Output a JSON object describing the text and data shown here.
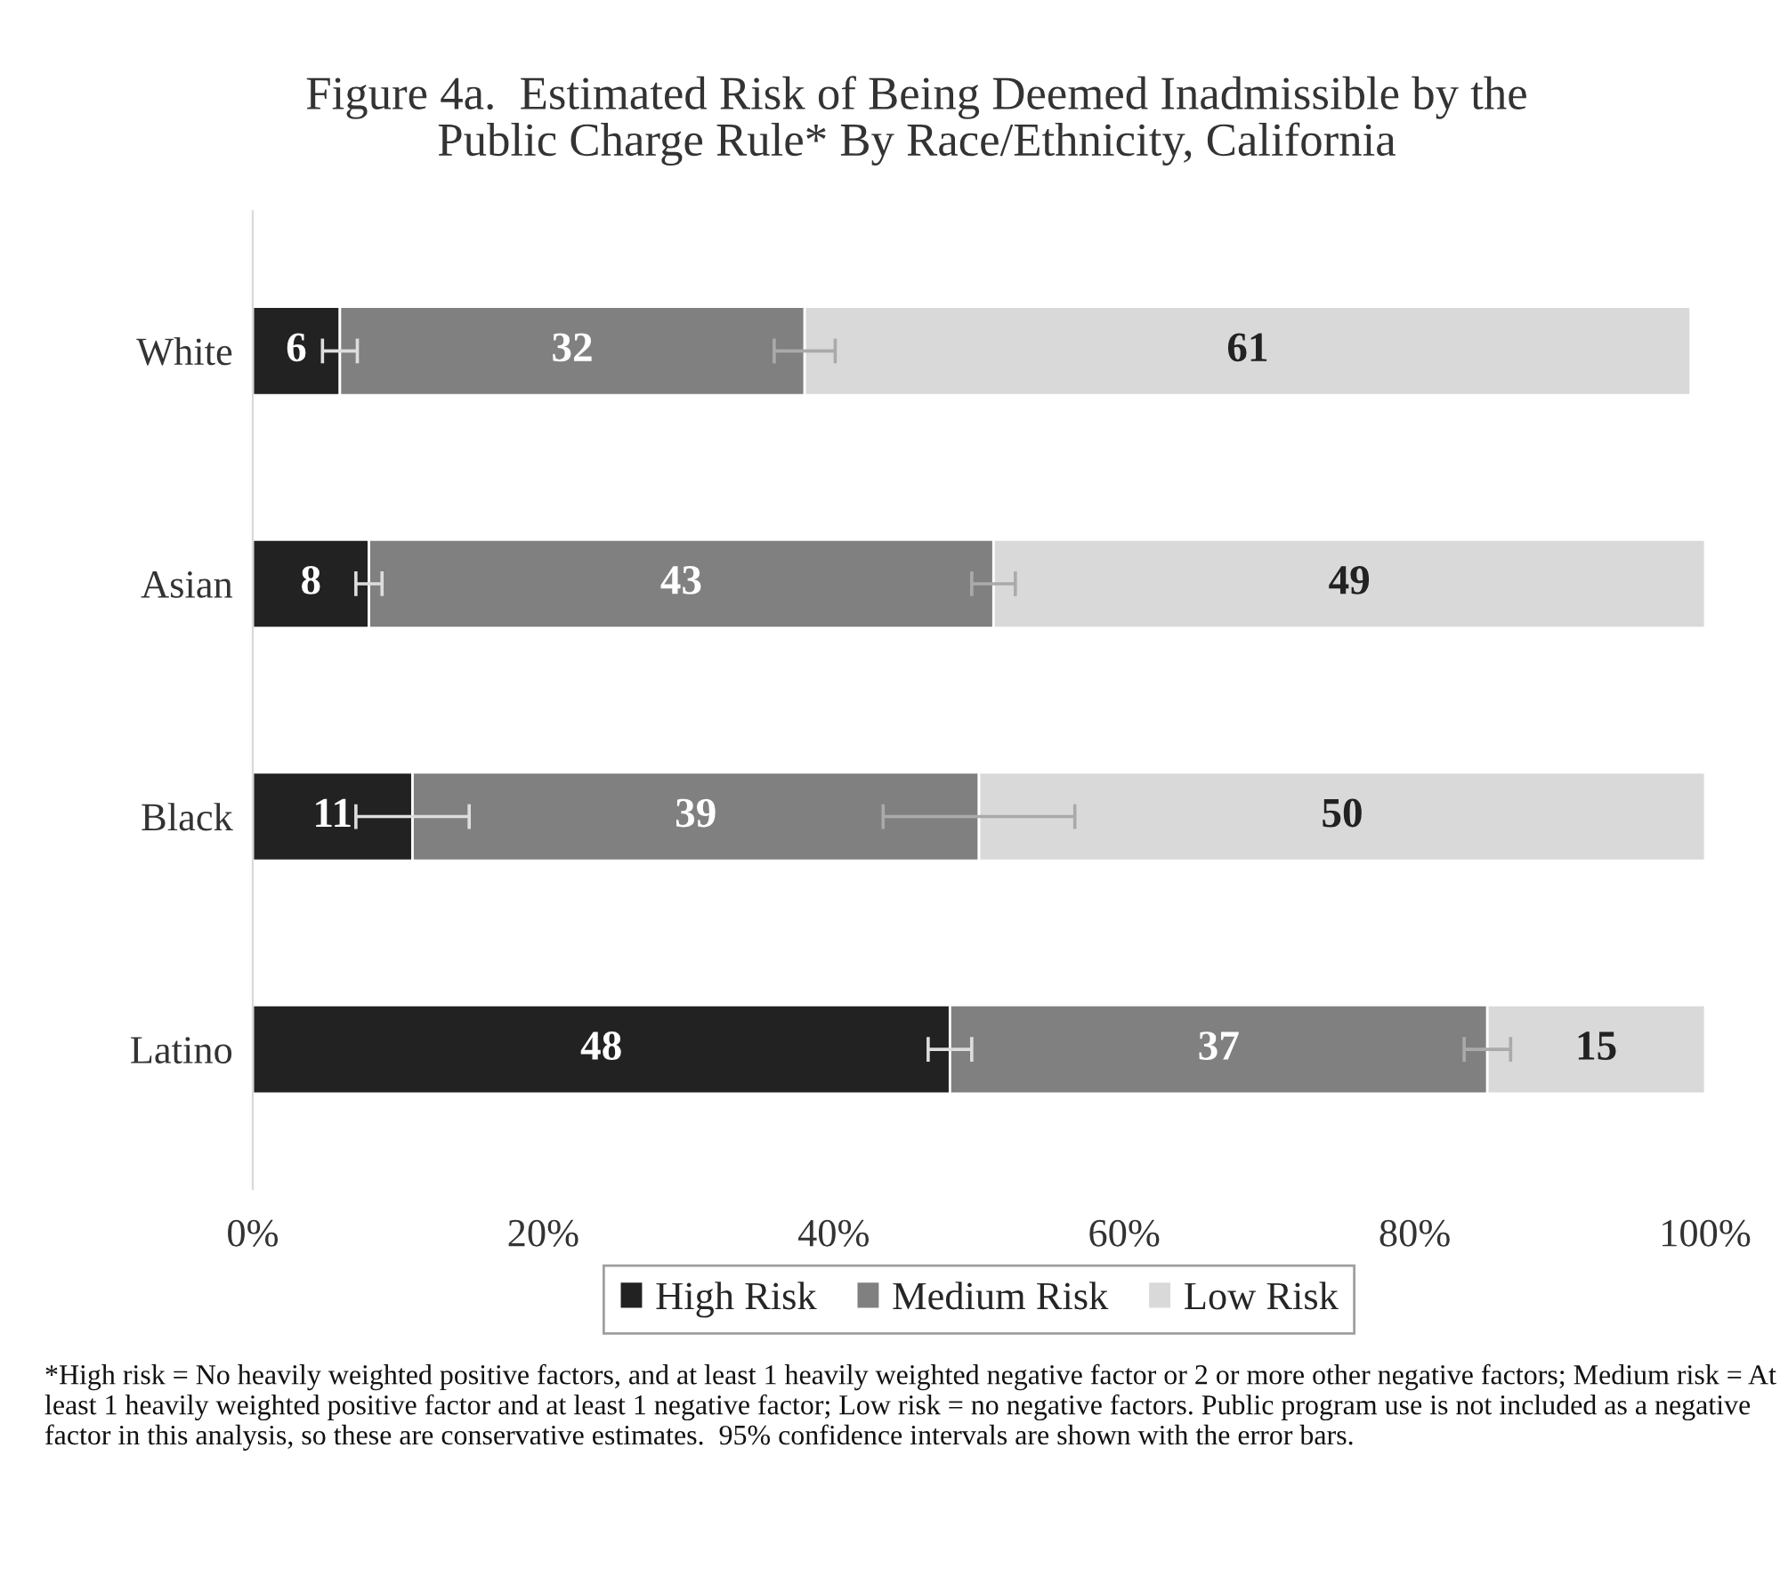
{
  "chart_data": {
    "type": "bar",
    "orientation": "horizontal",
    "stacked": true,
    "title": "Figure 4a.  Estimated Risk of Being Deemed Inadmissible by the\nPublic Charge Rule* By Race/Ethnicity, California",
    "categories": [
      "White",
      "Asian",
      "Black",
      "Latino"
    ],
    "series": [
      {
        "name": "High Risk",
        "color": "#222222",
        "values": [
          6,
          8,
          11,
          48
        ],
        "errors": [
          1.2,
          0.9,
          3.9,
          1.5
        ]
      },
      {
        "name": "Medium Risk",
        "color": "#808080",
        "values": [
          32,
          43,
          39,
          37
        ],
        "errors": [
          2.1,
          1.5,
          6.6,
          1.6
        ]
      },
      {
        "name": "Low Risk",
        "color": "#d9d9d9",
        "values": [
          61,
          49,
          50,
          15
        ]
      }
    ],
    "data_labels": true,
    "xlim": [
      0,
      100
    ],
    "xticks": [
      {
        "value": 0,
        "label": "0%"
      },
      {
        "value": 20,
        "label": "20%"
      },
      {
        "value": 40,
        "label": "40%"
      },
      {
        "value": 60,
        "label": "60%"
      },
      {
        "value": 80,
        "label": "80%"
      },
      {
        "value": 100,
        "label": "100%"
      }
    ],
    "grid": false,
    "legend": "bottom",
    "annotations": [
      "*High risk = No heavily weighted positive factors, and at least 1 heavily weighted negative factor or 2 or more other negative factors; Medium risk = At least 1 heavily weighted positive factor and at least 1 negative factor; Low risk = no negative factors. Public program use is not included as a negative factor in this analysis, so these are conservative estimates.  95% confidence intervals are shown with the error bars."
    ]
  }
}
